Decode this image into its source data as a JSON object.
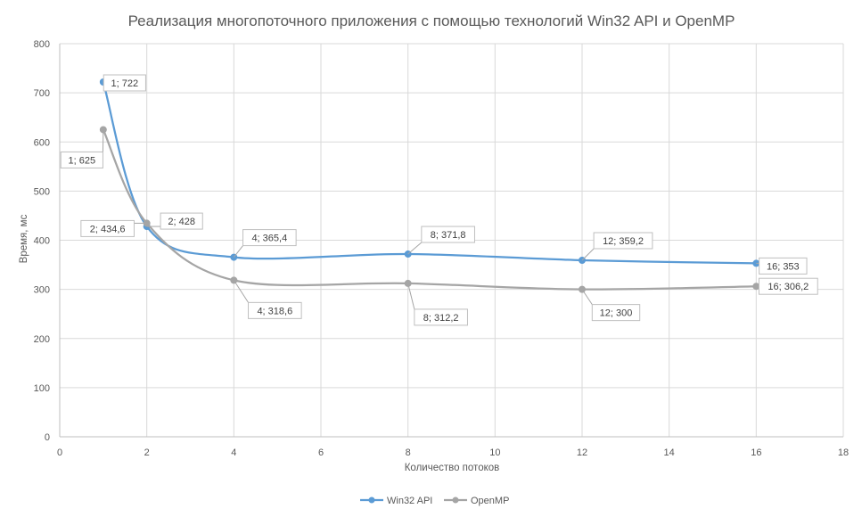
{
  "chart_data": {
    "type": "line",
    "title": "Реализация многопоточного приложения с помощью технологий Win32 API и OpenMP",
    "xlabel": "Количество потоков",
    "ylabel": "Время, мс",
    "xlim": [
      0,
      18
    ],
    "ylim": [
      0,
      800
    ],
    "xticks": [
      0,
      2,
      4,
      6,
      8,
      10,
      12,
      14,
      16,
      18
    ],
    "yticks": [
      0,
      100,
      200,
      300,
      400,
      500,
      600,
      700,
      800
    ],
    "grid": true,
    "legend_position": "bottom",
    "smooth": true,
    "series": [
      {
        "name": "Win32 API",
        "color": "#5B9BD5",
        "x": [
          1,
          2,
          4,
          8,
          12,
          16
        ],
        "y": [
          722,
          428,
          365.4,
          371.8,
          359.2,
          353
        ],
        "labels": [
          "1; 722",
          "2; 428",
          "4; 365,4",
          "8; 371,8",
          "12; 359,2",
          "16; 353"
        ]
      },
      {
        "name": "OpenMP",
        "color": "#A5A5A5",
        "x": [
          1,
          2,
          4,
          8,
          12,
          16
        ],
        "y": [
          625,
          434.6,
          318.6,
          312.2,
          300,
          306.2
        ],
        "labels": [
          "1; 625",
          "2; 434,6",
          "4; 318,6",
          "8; 312,2",
          "12; 300",
          "16; 306,2"
        ]
      }
    ]
  }
}
